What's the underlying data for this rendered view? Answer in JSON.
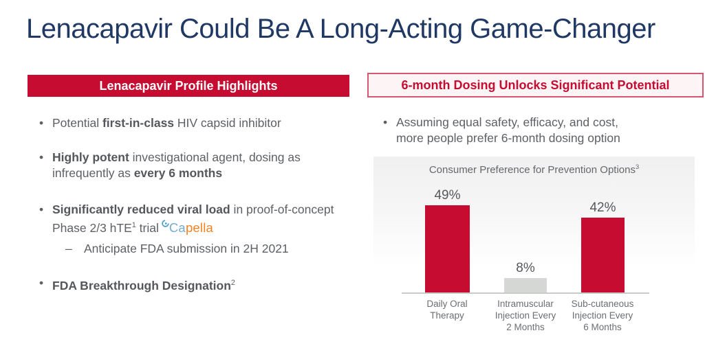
{
  "page": {
    "title": "Lenacapavir Could Be A Long-Acting Game-Changer"
  },
  "colors": {
    "title_navy": "#1F3864",
    "crimson_red": "#C60C30",
    "right_header_border_pink": "#D85572",
    "right_header_bg_pink": "#FDF4F6",
    "body_text_gray": "#5D6064",
    "gray_bar": "#D5D7D4",
    "capella_blue": "#74ACCE",
    "capella_orange": "#F58220"
  },
  "left_panel": {
    "header": "Lenacapavir Profile Highlights",
    "marker": "•",
    "sub_marker": "–",
    "bullet1": {
      "s0": "Potential ",
      "s1": "first-in-class",
      "s2": " HIV capsid inhibitor"
    },
    "bullet2": {
      "s0": "Highly potent",
      "s1": " investigational agent, dosing as infrequently as ",
      "s2": "every 6 months"
    },
    "bullet3": {
      "s0": "Significantly reduced viral load",
      "s1": " in proof-of-concept Phase 2/3 hTE",
      "sup": "1",
      "s2": " trial",
      "logo_ca": "Ca",
      "logo_pella": "pella"
    },
    "sub_bullet": {
      "text": "Anticipate FDA submission in 2H 2021"
    },
    "bullet4": {
      "s0": "FDA Breakthrough Designation",
      "sup": "2"
    }
  },
  "right_panel": {
    "header": "6-month Dosing Unlocks Significant Potential",
    "marker": "•",
    "bullet_line1": "Assuming equal safety, efficacy, and cost,",
    "bullet_line2": "more people prefer 6-month dosing option"
  },
  "chart_data": {
    "type": "bar",
    "title": "Consumer Preference for Prevention Options",
    "title_sup": "3",
    "categories": [
      "Daily Oral Therapy",
      "Intramuscular Injection Every 2 Months",
      "Sub-cutaneous Injection Every 6 Months"
    ],
    "cat_lines": [
      [
        "Daily Oral",
        "Therapy"
      ],
      [
        "Intramuscular",
        "Injection Every",
        "2 Months"
      ],
      [
        "Sub-cutaneous",
        "Injection Every",
        "6 Months"
      ]
    ],
    "values": [
      49,
      8,
      42
    ],
    "value_labels": [
      "49%",
      "8%",
      "42%"
    ],
    "bar_colors": [
      "#C60C30",
      "#D5D7D4",
      "#C60C30"
    ],
    "ylim": [
      0,
      55
    ],
    "xlabel": "",
    "ylabel": "",
    "grid": false,
    "legend": "none"
  }
}
